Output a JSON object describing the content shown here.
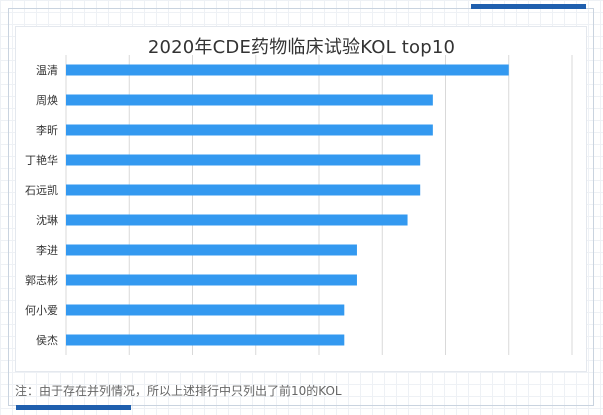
{
  "chart_data": {
    "type": "bar",
    "orientation": "horizontal",
    "title": "2020年CDE药物临床试验KOL top10",
    "categories": [
      "温清",
      "周焕",
      "李昕",
      "丁艳华",
      "石远凯",
      "沈琳",
      "李进",
      "郭志彬",
      "何小爱",
      "侯杰"
    ],
    "values": [
      35,
      29,
      29,
      28,
      28,
      27,
      23,
      23,
      22,
      22
    ],
    "xlim": [
      0,
      40
    ],
    "x_gridlines": [
      0,
      5,
      10,
      15,
      20,
      25,
      30,
      35,
      40
    ],
    "grid": true,
    "legend": "none",
    "bar_color": "#3399f0",
    "grid_color": "#d9d9d9"
  },
  "note": "注：由于存在并列情况，所以上述排行中只列出了前10的KOL",
  "colors": {
    "accent": "#1f5fae"
  }
}
